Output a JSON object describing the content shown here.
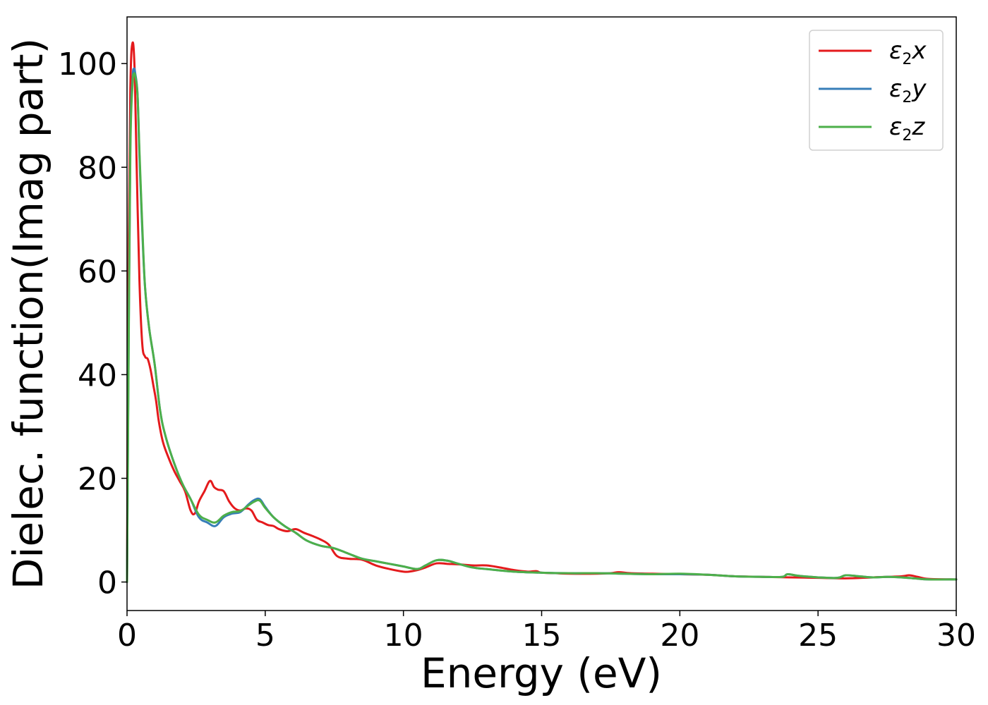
{
  "chart_data": {
    "type": "line",
    "xlabel": "Energy (eV)",
    "ylabel": "Dielec. function(Imag part)",
    "xlim": [
      0,
      30
    ],
    "ylim": [
      -5.5,
      109
    ],
    "xticks": [
      0,
      5,
      10,
      15,
      20,
      25,
      30
    ],
    "yticks": [
      0,
      20,
      40,
      60,
      80,
      100
    ],
    "xtick_labels": [
      "0",
      "5",
      "10",
      "15",
      "20",
      "25",
      "30"
    ],
    "ytick_labels": [
      "0",
      "20",
      "40",
      "60",
      "80",
      "100"
    ],
    "grid": false,
    "legend_position": "top-right",
    "series": [
      {
        "name": "ε2x",
        "label_main": "ε",
        "label_sub": "2",
        "label_tail": "x",
        "color": "#e41a1c",
        "x": [
          0,
          0.05,
          0.12,
          0.2,
          0.28,
          0.35,
          0.45,
          0.55,
          0.65,
          0.75,
          0.85,
          0.95,
          1.05,
          1.15,
          1.3,
          1.5,
          1.7,
          1.9,
          2.1,
          2.3,
          2.45,
          2.6,
          2.8,
          3.0,
          3.15,
          3.3,
          3.5,
          3.7,
          3.9,
          4.1,
          4.3,
          4.5,
          4.7,
          4.9,
          5.1,
          5.3,
          5.5,
          5.8,
          6.1,
          6.4,
          6.7,
          7.0,
          7.3,
          7.6,
          8.0,
          8.5,
          9.0,
          9.5,
          10.0,
          10.2,
          10.5,
          10.8,
          11.2,
          11.6,
          12.0,
          12.5,
          13.0,
          13.5,
          14.0,
          14.5,
          14.8,
          15.0,
          15.5,
          16.0,
          17.0,
          17.5,
          17.8,
          18.2,
          19.0,
          20.0,
          21.0,
          22.0,
          23.0,
          24.0,
          25.0,
          26.0,
          27.0,
          28.0,
          28.3,
          28.6,
          29.0,
          30.0
        ],
        "y": [
          0,
          60,
          95,
          104,
          98,
          80,
          58,
          46,
          43.5,
          43,
          41,
          38,
          35,
          31,
          27,
          24,
          21.5,
          19.5,
          17.5,
          13.8,
          13.2,
          15.5,
          17.5,
          19.5,
          18.3,
          17.8,
          17.5,
          15.5,
          14.2,
          13.8,
          14.2,
          13.8,
          12,
          11.5,
          11,
          10.8,
          10.2,
          9.8,
          10.2,
          9.5,
          8.9,
          8.2,
          7.2,
          5.0,
          4.5,
          4.3,
          3.2,
          2.5,
          2.0,
          2.0,
          2.3,
          2.8,
          3.6,
          3.5,
          3.4,
          3.2,
          3.2,
          2.8,
          2.3,
          2.0,
          2.1,
          1.8,
          1.7,
          1.6,
          1.6,
          1.7,
          1.9,
          1.7,
          1.6,
          1.5,
          1.4,
          1.1,
          1.0,
          0.9,
          0.8,
          0.7,
          0.9,
          1.1,
          1.3,
          1.0,
          0.6,
          0.5
        ]
      },
      {
        "name": "ε2y",
        "label_main": "ε",
        "label_sub": "2",
        "label_tail": "y",
        "color": "#377eb8",
        "x": [
          0,
          0.05,
          0.12,
          0.2,
          0.25,
          0.3,
          0.38,
          0.45,
          0.55,
          0.65,
          0.8,
          1.0,
          1.2,
          1.4,
          1.7,
          2.0,
          2.3,
          2.6,
          2.9,
          3.2,
          3.5,
          3.8,
          4.1,
          4.4,
          4.6,
          4.8,
          5.0,
          5.3,
          5.7,
          6.1,
          6.5,
          7.0,
          7.5,
          8.0,
          8.5,
          9.0,
          9.5,
          10.0,
          10.5,
          10.8,
          11.2,
          11.6,
          12.0,
          12.5,
          13.0,
          14.0,
          15.0,
          16.0,
          17.0,
          18.0,
          19.0,
          20.0,
          21.0,
          22.0,
          23.0,
          23.7,
          23.9,
          24.3,
          25.0,
          25.7,
          26.0,
          26.5,
          27.0,
          27.5,
          28.0,
          28.5,
          29.0,
          30.0
        ],
        "y": [
          0,
          40,
          85,
          97,
          99,
          98,
          94,
          82,
          68,
          57,
          49,
          42,
          33,
          28,
          23,
          19,
          16,
          12.5,
          11.5,
          10.8,
          12.5,
          13.2,
          13.5,
          15.0,
          15.8,
          16.0,
          14.5,
          12.5,
          10.8,
          9.5,
          8.0,
          7.0,
          6.5,
          5.5,
          4.5,
          4.0,
          3.5,
          3.0,
          2.5,
          3.2,
          4.2,
          4.1,
          3.5,
          2.8,
          2.5,
          2.0,
          1.8,
          1.7,
          1.7,
          1.6,
          1.5,
          1.5,
          1.4,
          1.1,
          1.0,
          1.0,
          1.5,
          1.2,
          0.9,
          0.8,
          1.3,
          1.1,
          0.9,
          1.0,
          0.9,
          0.7,
          0.5,
          0.5
        ]
      },
      {
        "name": "ε2z",
        "label_main": "ε",
        "label_sub": "2",
        "label_tail": "z",
        "color": "#4daf4a",
        "x": [
          0,
          0.05,
          0.12,
          0.2,
          0.25,
          0.3,
          0.38,
          0.45,
          0.55,
          0.65,
          0.8,
          1.0,
          1.2,
          1.4,
          1.7,
          2.0,
          2.3,
          2.6,
          2.9,
          3.2,
          3.5,
          3.8,
          4.1,
          4.4,
          4.6,
          4.8,
          5.0,
          5.3,
          5.7,
          6.1,
          6.5,
          7.0,
          7.5,
          8.0,
          8.5,
          9.0,
          9.5,
          10.0,
          10.5,
          10.8,
          11.2,
          11.6,
          12.0,
          12.5,
          13.0,
          14.0,
          15.0,
          16.0,
          17.0,
          18.0,
          19.0,
          20.0,
          21.0,
          22.0,
          23.0,
          23.7,
          23.9,
          24.3,
          25.0,
          25.7,
          26.0,
          26.5,
          27.0,
          27.5,
          28.0,
          28.5,
          29.0,
          30.0
        ],
        "y": [
          0,
          38,
          83,
          96,
          98,
          97.5,
          94,
          83,
          69,
          57,
          49,
          42,
          33,
          28,
          23,
          19,
          16,
          13,
          12,
          11.5,
          12.8,
          13.5,
          13.7,
          14.8,
          15.5,
          15.7,
          14.3,
          12.5,
          10.8,
          9.5,
          8.0,
          7.0,
          6.5,
          5.5,
          4.5,
          4.0,
          3.5,
          3.0,
          2.5,
          3.2,
          4.2,
          4.1,
          3.5,
          2.8,
          2.5,
          2.0,
          1.8,
          1.7,
          1.7,
          1.6,
          1.5,
          1.6,
          1.4,
          1.1,
          1.0,
          1.0,
          1.5,
          1.2,
          0.9,
          0.8,
          1.3,
          1.1,
          0.9,
          1.0,
          0.9,
          0.7,
          0.5,
          0.5
        ]
      }
    ]
  }
}
